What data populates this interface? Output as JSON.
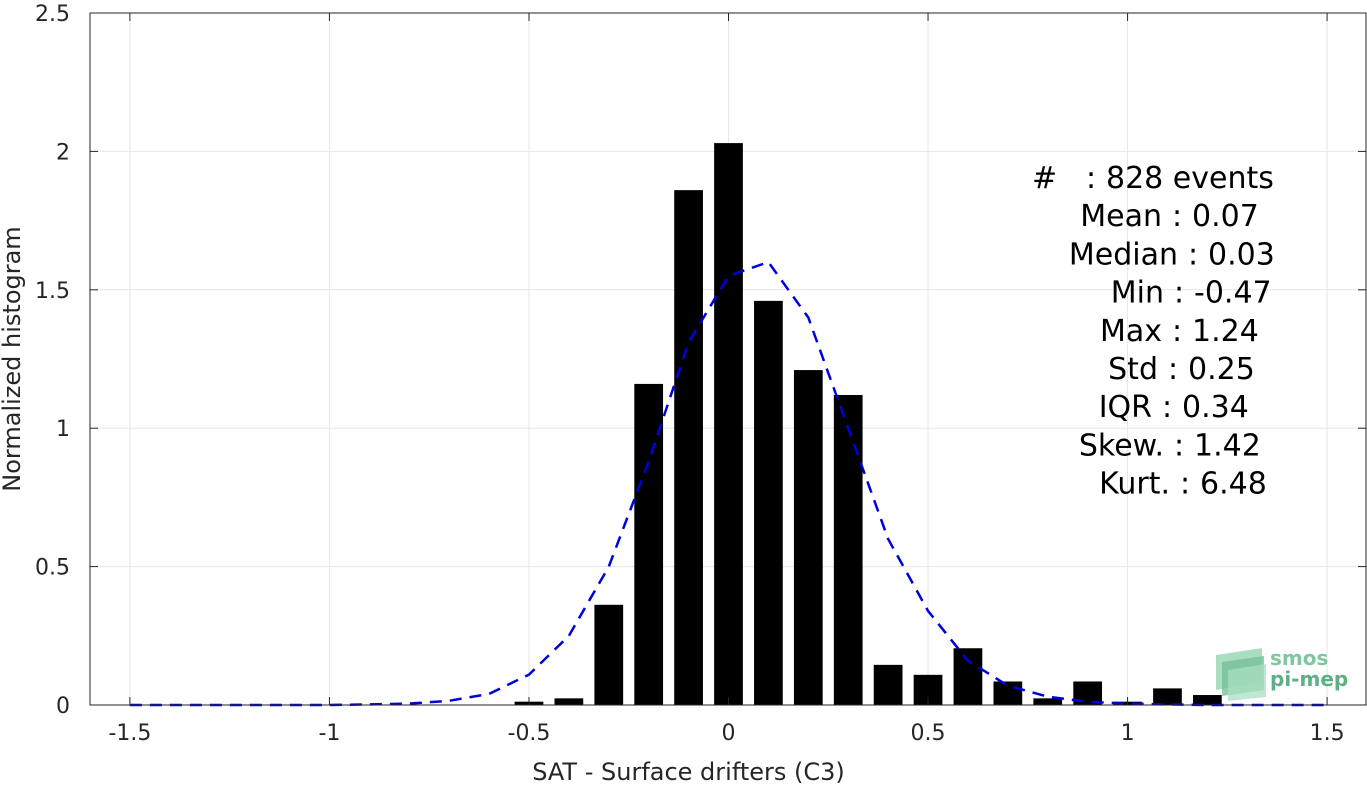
{
  "chart_data": {
    "type": "bar",
    "xlabel": "SAT - Surface drifters (C3)",
    "ylabel": "Normalized histogram",
    "xlim": [
      -1.6,
      1.6
    ],
    "ylim": [
      0,
      2.5
    ],
    "xticks": [
      -1.5,
      -1,
      -0.5,
      0,
      0.5,
      1,
      1.5
    ],
    "xtick_labels": [
      "-1.5",
      "-1",
      "-0.5",
      "0",
      "0.5",
      "1",
      "1.5"
    ],
    "yticks": [
      0,
      0.5,
      1,
      1.5,
      2,
      2.5
    ],
    "ytick_labels": [
      "0",
      "0.5",
      "1",
      "1.5",
      "2",
      "2.5"
    ],
    "grid": true,
    "bar_color": "#000000",
    "bars": {
      "x": [
        -0.5,
        -0.4,
        -0.3,
        -0.2,
        -0.1,
        0.0,
        0.1,
        0.2,
        0.3,
        0.4,
        0.5,
        0.6,
        0.7,
        0.8,
        0.9,
        1.0,
        1.1,
        1.2
      ],
      "values": [
        0.012,
        0.024,
        0.362,
        1.16,
        1.86,
        2.03,
        1.46,
        1.21,
        1.12,
        0.145,
        0.109,
        0.205,
        0.085,
        0.024,
        0.085,
        0.012,
        0.06,
        0.036
      ]
    },
    "fit_line": {
      "color": "#0000dd",
      "style": "dashed",
      "x": [
        -1.5,
        -1.4,
        -1.3,
        -1.2,
        -1.1,
        -1.0,
        -0.9,
        -0.8,
        -0.7,
        -0.6,
        -0.5,
        -0.4,
        -0.3,
        -0.2,
        -0.1,
        0.0,
        0.1,
        0.2,
        0.3,
        0.4,
        0.5,
        0.6,
        0.7,
        0.8,
        0.9,
        1.0,
        1.1,
        1.2,
        1.3,
        1.4,
        1.5
      ],
      "y": [
        0.0,
        0.0,
        0.0,
        0.0,
        0.0,
        0.0,
        0.002,
        0.005,
        0.015,
        0.04,
        0.11,
        0.25,
        0.5,
        0.88,
        1.31,
        1.55,
        1.6,
        1.4,
        1.0,
        0.6,
        0.34,
        0.16,
        0.07,
        0.03,
        0.012,
        0.005,
        0.002,
        0.0,
        0.0,
        0.0,
        0.0
      ]
    },
    "stats": [
      {
        "label": "#",
        "sep": ":",
        "value": "828 events"
      },
      {
        "label": "Mean",
        "sep": ":",
        "value": "0.07"
      },
      {
        "label": "Median",
        "sep": ":",
        "value": "0.03"
      },
      {
        "label": "Min",
        "sep": ":",
        "value": "-0.47"
      },
      {
        "label": "Max",
        "sep": ":",
        "value": "1.24"
      },
      {
        "label": "Std",
        "sep": ":",
        "value": "0.25"
      },
      {
        "label": "IQR",
        "sep": ":",
        "value": "0.34"
      },
      {
        "label": "Skew.",
        "sep": ":",
        "value": "1.42"
      },
      {
        "label": "Kurt.",
        "sep": ":",
        "value": "6.48"
      }
    ]
  },
  "logo": {
    "line1": "smos",
    "line2": "pi-mep",
    "color1": "#7fc7a0",
    "color2": "#5fae86"
  }
}
